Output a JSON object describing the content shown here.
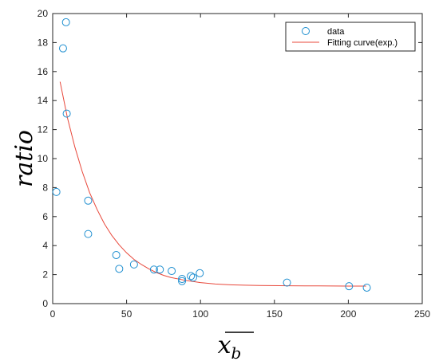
{
  "chart_data": {
    "type": "scatter",
    "title": "",
    "xlabel": "x",
    "xlabel_subscript": "b",
    "ylabel": "ratio",
    "xlim": [
      0,
      250
    ],
    "ylim": [
      0,
      20
    ],
    "xticks": [
      0,
      50,
      100,
      150,
      200,
      250
    ],
    "yticks": [
      0,
      2,
      4,
      6,
      8,
      10,
      12,
      14,
      16,
      18,
      20
    ],
    "grid": false,
    "legend_position": "top-right",
    "series": [
      {
        "name": "data",
        "kind": "scatter",
        "color": "#1f8fd0",
        "points": [
          {
            "x": 2.5,
            "y": 7.7
          },
          {
            "x": 7.0,
            "y": 17.6
          },
          {
            "x": 9.0,
            "y": 19.4
          },
          {
            "x": 9.5,
            "y": 13.1
          },
          {
            "x": 24.0,
            "y": 7.1
          },
          {
            "x": 24.0,
            "y": 4.8
          },
          {
            "x": 43.0,
            "y": 3.35
          },
          {
            "x": 45.0,
            "y": 2.4
          },
          {
            "x": 55.0,
            "y": 2.7
          },
          {
            "x": 68.5,
            "y": 2.35
          },
          {
            "x": 72.5,
            "y": 2.35
          },
          {
            "x": 80.5,
            "y": 2.25
          },
          {
            "x": 87.5,
            "y": 1.55
          },
          {
            "x": 87.5,
            "y": 1.7
          },
          {
            "x": 93.5,
            "y": 1.9
          },
          {
            "x": 95.0,
            "y": 1.8
          },
          {
            "x": 99.5,
            "y": 2.1
          },
          {
            "x": 158.5,
            "y": 1.45
          },
          {
            "x": 200.5,
            "y": 1.2
          },
          {
            "x": 212.5,
            "y": 1.1
          }
        ]
      },
      {
        "name": "Fitting curve(exp.)",
        "kind": "line",
        "color": "#e8483b",
        "points": [
          {
            "x": 5,
            "y": 15.3
          },
          {
            "x": 10,
            "y": 12.8
          },
          {
            "x": 15,
            "y": 10.8
          },
          {
            "x": 20,
            "y": 9.1
          },
          {
            "x": 25,
            "y": 7.65
          },
          {
            "x": 30,
            "y": 6.5
          },
          {
            "x": 35,
            "y": 5.5
          },
          {
            "x": 40,
            "y": 4.7
          },
          {
            "x": 45,
            "y": 4.05
          },
          {
            "x": 50,
            "y": 3.5
          },
          {
            "x": 55,
            "y": 3.05
          },
          {
            "x": 60,
            "y": 2.7
          },
          {
            "x": 65,
            "y": 2.4
          },
          {
            "x": 70,
            "y": 2.15
          },
          {
            "x": 75,
            "y": 1.95
          },
          {
            "x": 80,
            "y": 1.8
          },
          {
            "x": 85,
            "y": 1.7
          },
          {
            "x": 90,
            "y": 1.6
          },
          {
            "x": 100,
            "y": 1.45
          },
          {
            "x": 110,
            "y": 1.35
          },
          {
            "x": 120,
            "y": 1.3
          },
          {
            "x": 130,
            "y": 1.27
          },
          {
            "x": 140,
            "y": 1.25
          },
          {
            "x": 160,
            "y": 1.23
          },
          {
            "x": 180,
            "y": 1.22
          },
          {
            "x": 200,
            "y": 1.21
          },
          {
            "x": 212,
            "y": 1.21
          }
        ]
      }
    ]
  }
}
